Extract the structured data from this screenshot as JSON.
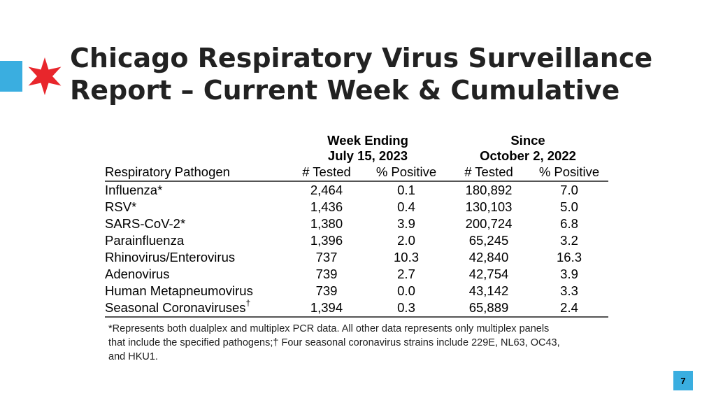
{
  "header": {
    "title_line1": "Chicago Respiratory Virus Surveillance",
    "title_line2": "Report – Current Week & Cumulative",
    "accent_color": "#3aaee0",
    "star_color": "#e8262c",
    "star_icon": "six-point-star-icon"
  },
  "table": {
    "group1_line1": "Week Ending",
    "group1_line2": "July 15, 2023",
    "group2_line1": "Since",
    "group2_line2": "October 2, 2022",
    "columns": [
      "Respiratory Pathogen",
      "# Tested",
      "% Positive",
      "# Tested",
      "% Positive"
    ],
    "rows": [
      {
        "pathogen": "Influenza*",
        "week_tested": "2,464",
        "week_pos": "0.1",
        "since_tested": "180,892",
        "since_pos": "7.0"
      },
      {
        "pathogen": "RSV*",
        "week_tested": "1,436",
        "week_pos": "0.4",
        "since_tested": "130,103",
        "since_pos": "5.0"
      },
      {
        "pathogen": "SARS-CoV-2*",
        "week_tested": "1,380",
        "week_pos": "3.9",
        "since_tested": "200,724",
        "since_pos": "6.8"
      },
      {
        "pathogen": "Parainfluenza",
        "week_tested": "1,396",
        "week_pos": "2.0",
        "since_tested": "65,245",
        "since_pos": "3.2"
      },
      {
        "pathogen": "Rhinovirus/Enterovirus",
        "week_tested": "737",
        "week_pos": "10.3",
        "since_tested": "42,840",
        "since_pos": "16.3"
      },
      {
        "pathogen": "Adenovirus",
        "week_tested": "739",
        "week_pos": "2.7",
        "since_tested": "42,754",
        "since_pos": "3.9"
      },
      {
        "pathogen": "Human Metapneumovirus",
        "week_tested": "739",
        "week_pos": "0.0",
        "since_tested": "43,142",
        "since_pos": "3.3"
      },
      {
        "pathogen": "Seasonal Coronaviruses",
        "pathogen_sup": "†",
        "week_tested": "1,394",
        "week_pos": "0.3",
        "since_tested": "65,889",
        "since_pos": "2.4"
      }
    ],
    "footnote_line1": "*Represents both dualplex and multiplex PCR data. All other data represents only multiplex panels",
    "footnote_line2": "that include the specified pathogens;† Four seasonal coronavirus strains include 229E, NL63, OC43,",
    "footnote_line3": "and HKU1."
  },
  "footer": {
    "page_number": "7"
  }
}
